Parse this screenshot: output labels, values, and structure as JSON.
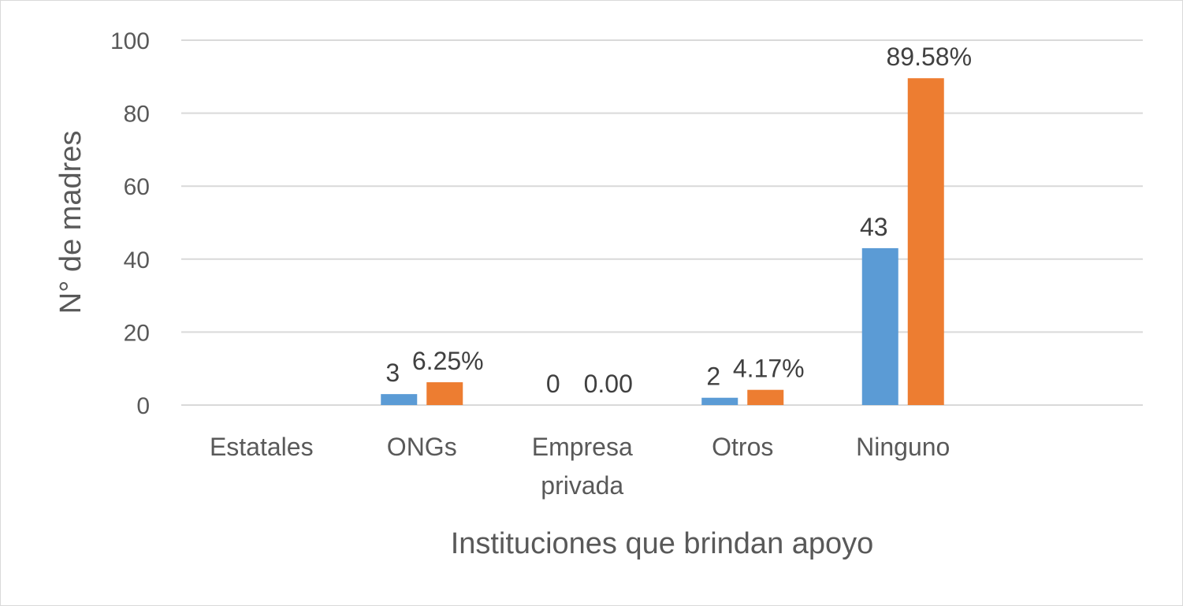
{
  "chart_data": {
    "type": "bar",
    "title": "",
    "xlabel": "Instituciones que brindan apoyo",
    "ylabel": "N° de madres",
    "ylim": [
      0,
      100
    ],
    "yticks": [
      "0",
      "20",
      "40",
      "60",
      "80",
      "100"
    ],
    "grid": true,
    "legend": "none",
    "categories": [
      "Estatales",
      "ONGs",
      "Empresa privada",
      "Otros",
      "Ninguno"
    ],
    "category_lines": [
      [
        "Estatales"
      ],
      [
        "ONGs"
      ],
      [
        "Empresa",
        "privada"
      ],
      [
        "Otros"
      ],
      [
        "Ninguno"
      ]
    ],
    "series": [
      {
        "color": "#5B9BD5",
        "values": [
          0,
          3,
          0,
          2,
          43
        ],
        "labels": [
          "",
          "3",
          "0",
          "2",
          "43"
        ]
      },
      {
        "color": "#ED7D31",
        "values": [
          0,
          6.25,
          0,
          4.17,
          89.58
        ],
        "labels": [
          "",
          "6.25%",
          "0.00",
          "4.17%",
          "89.58%"
        ]
      }
    ]
  }
}
